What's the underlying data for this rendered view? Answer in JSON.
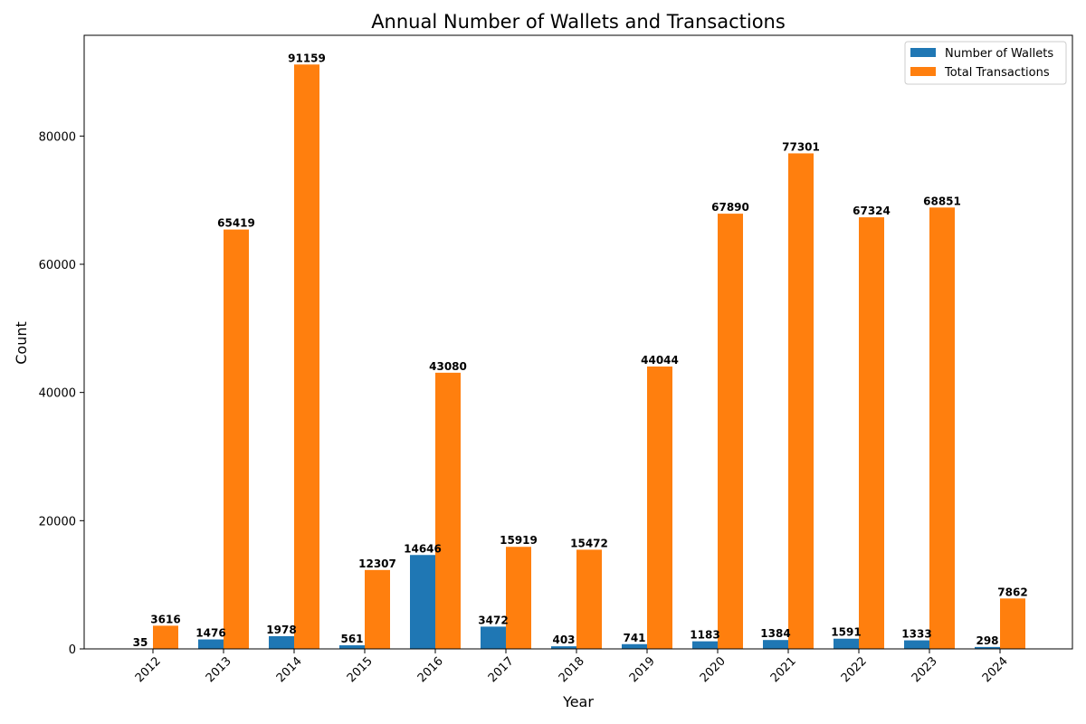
{
  "chart_data": {
    "type": "bar",
    "title": "Annual Number of Wallets and Transactions",
    "xlabel": "Year",
    "ylabel": "Count",
    "categories": [
      "2012",
      "2013",
      "2014",
      "2015",
      "2016",
      "2017",
      "2018",
      "2019",
      "2020",
      "2021",
      "2022",
      "2023",
      "2024"
    ],
    "series": [
      {
        "name": "Number of Wallets",
        "color": "#1f77b4",
        "values": [
          35,
          1476,
          1978,
          561,
          14646,
          3472,
          403,
          741,
          1183,
          1384,
          1591,
          1333,
          298
        ]
      },
      {
        "name": "Total Transactions",
        "color": "#ff7f0e",
        "values": [
          3616,
          65419,
          91159,
          12307,
          43080,
          15919,
          15472,
          44044,
          67890,
          77301,
          67324,
          68851,
          7862
        ]
      }
    ],
    "ylim": [
      0,
      95716
    ],
    "yticks": [
      0,
      20000,
      40000,
      60000,
      80000
    ],
    "legend": "top-right",
    "grid": false
  }
}
